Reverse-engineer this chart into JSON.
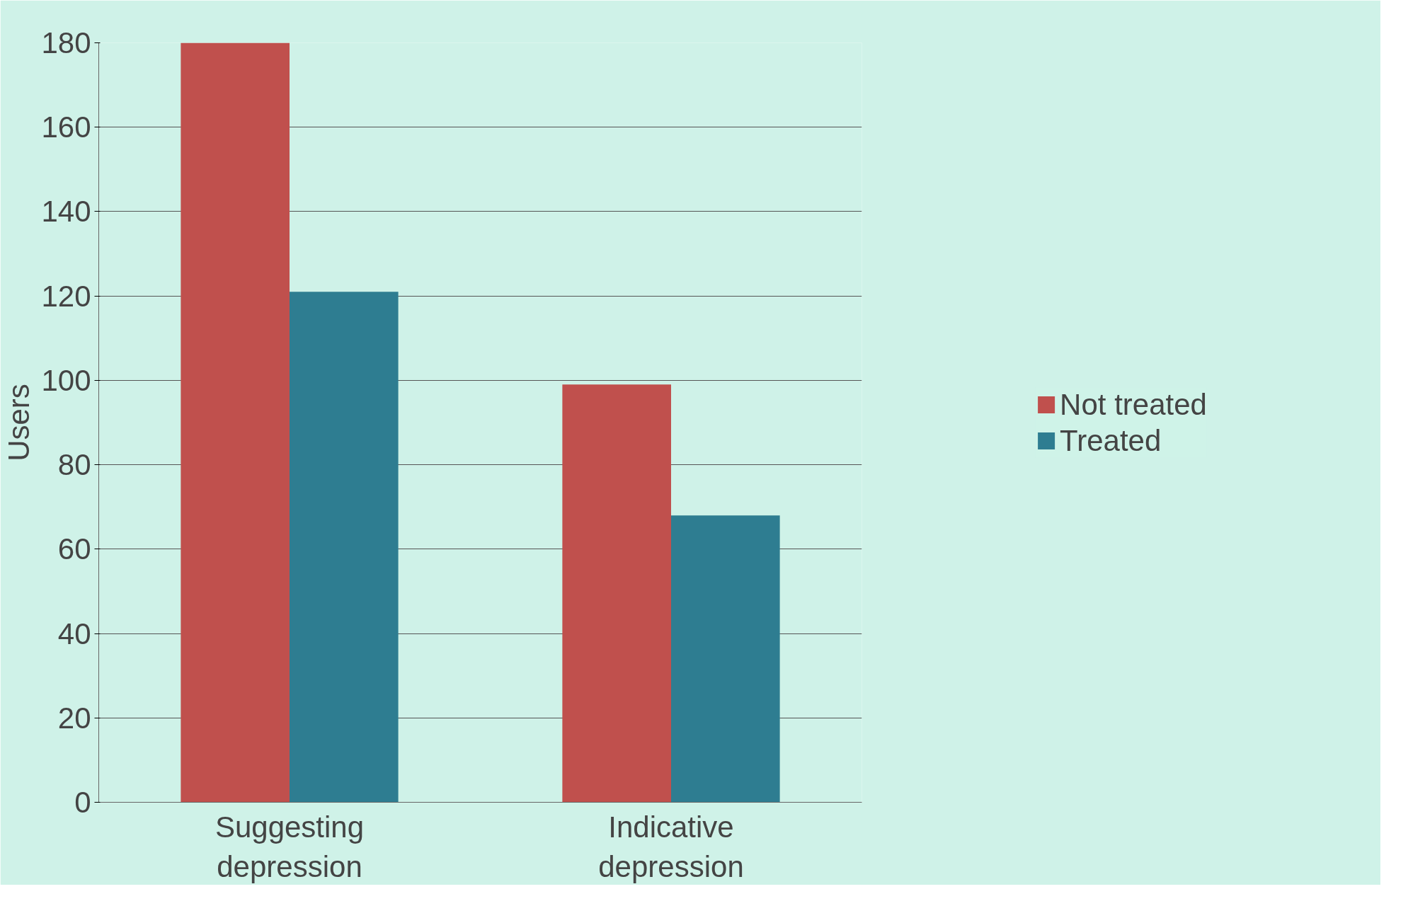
{
  "chart_data": {
    "type": "bar",
    "ylabel": "Users",
    "categories": [
      "Suggesting\ndepression",
      "Indicative\ndepression"
    ],
    "series": [
      {
        "name": "Not treated",
        "color": "#c0504d",
        "values": [
          180,
          99
        ]
      },
      {
        "name": "Treated",
        "color": "#2e7d91",
        "values": [
          121,
          68
        ]
      }
    ],
    "ylim": [
      0,
      180
    ],
    "yticks": [
      0,
      20,
      40,
      60,
      80,
      100,
      120,
      140,
      160,
      180
    ],
    "grid": "y",
    "legend": "right"
  }
}
